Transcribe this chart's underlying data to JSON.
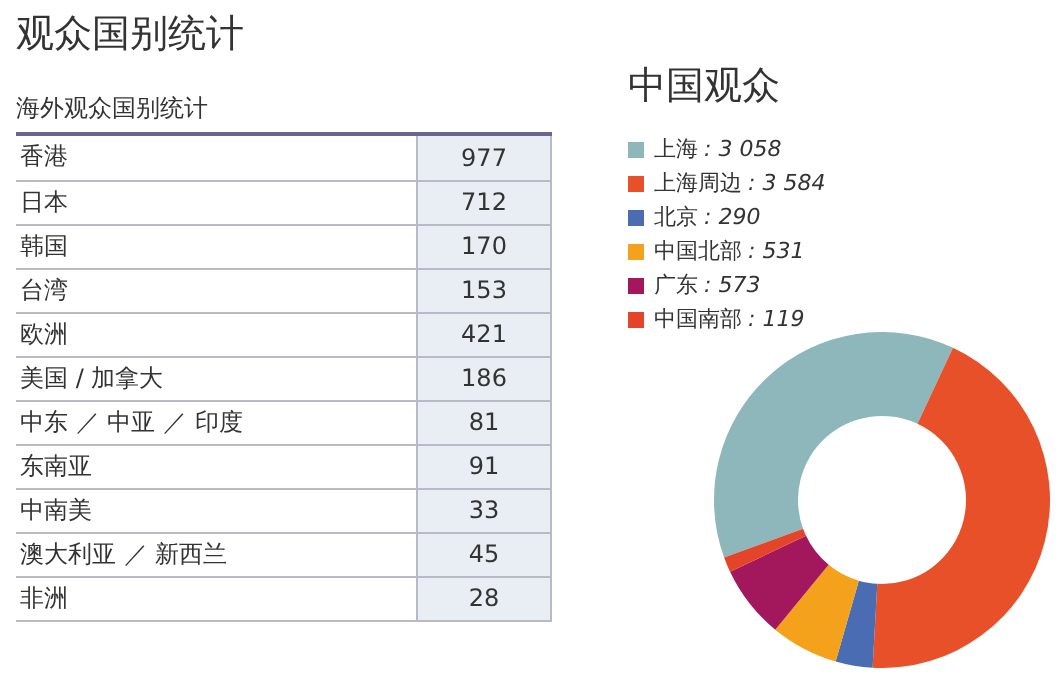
{
  "chart_data": [
    {
      "type": "other",
      "title": "观众国别统计",
      "subtitle": "海外观众国别统计",
      "categories": [
        "香港",
        "日本",
        "韩国",
        "台湾",
        "欧洲",
        "美国 / 加拿大",
        "中东 ／ 中亚 ／ 印度",
        "东南亚",
        "中南美",
        "澳大利亚 ／ 新西兰",
        "非洲"
      ],
      "values": [
        977,
        712,
        170,
        153,
        421,
        186,
        81,
        91,
        33,
        45,
        28
      ],
      "data_labels": true
    },
    {
      "type": "donut",
      "title": "中国观众",
      "categories": [
        "上海",
        "上海周边",
        "北京",
        "中国北部",
        "广东",
        "中国南部"
      ],
      "values": [
        3058,
        3584,
        290,
        531,
        573,
        119
      ],
      "value_labels": [
        ": 3 058",
        ": 3 584",
        ": 290",
        ": 531",
        ": 573",
        ": 119"
      ],
      "colors": [
        "#8db7ba",
        "#e8502a",
        "#4a6cb3",
        "#f4a21c",
        "#a3185c",
        "#e4452a"
      ],
      "legend": "top left"
    }
  ]
}
